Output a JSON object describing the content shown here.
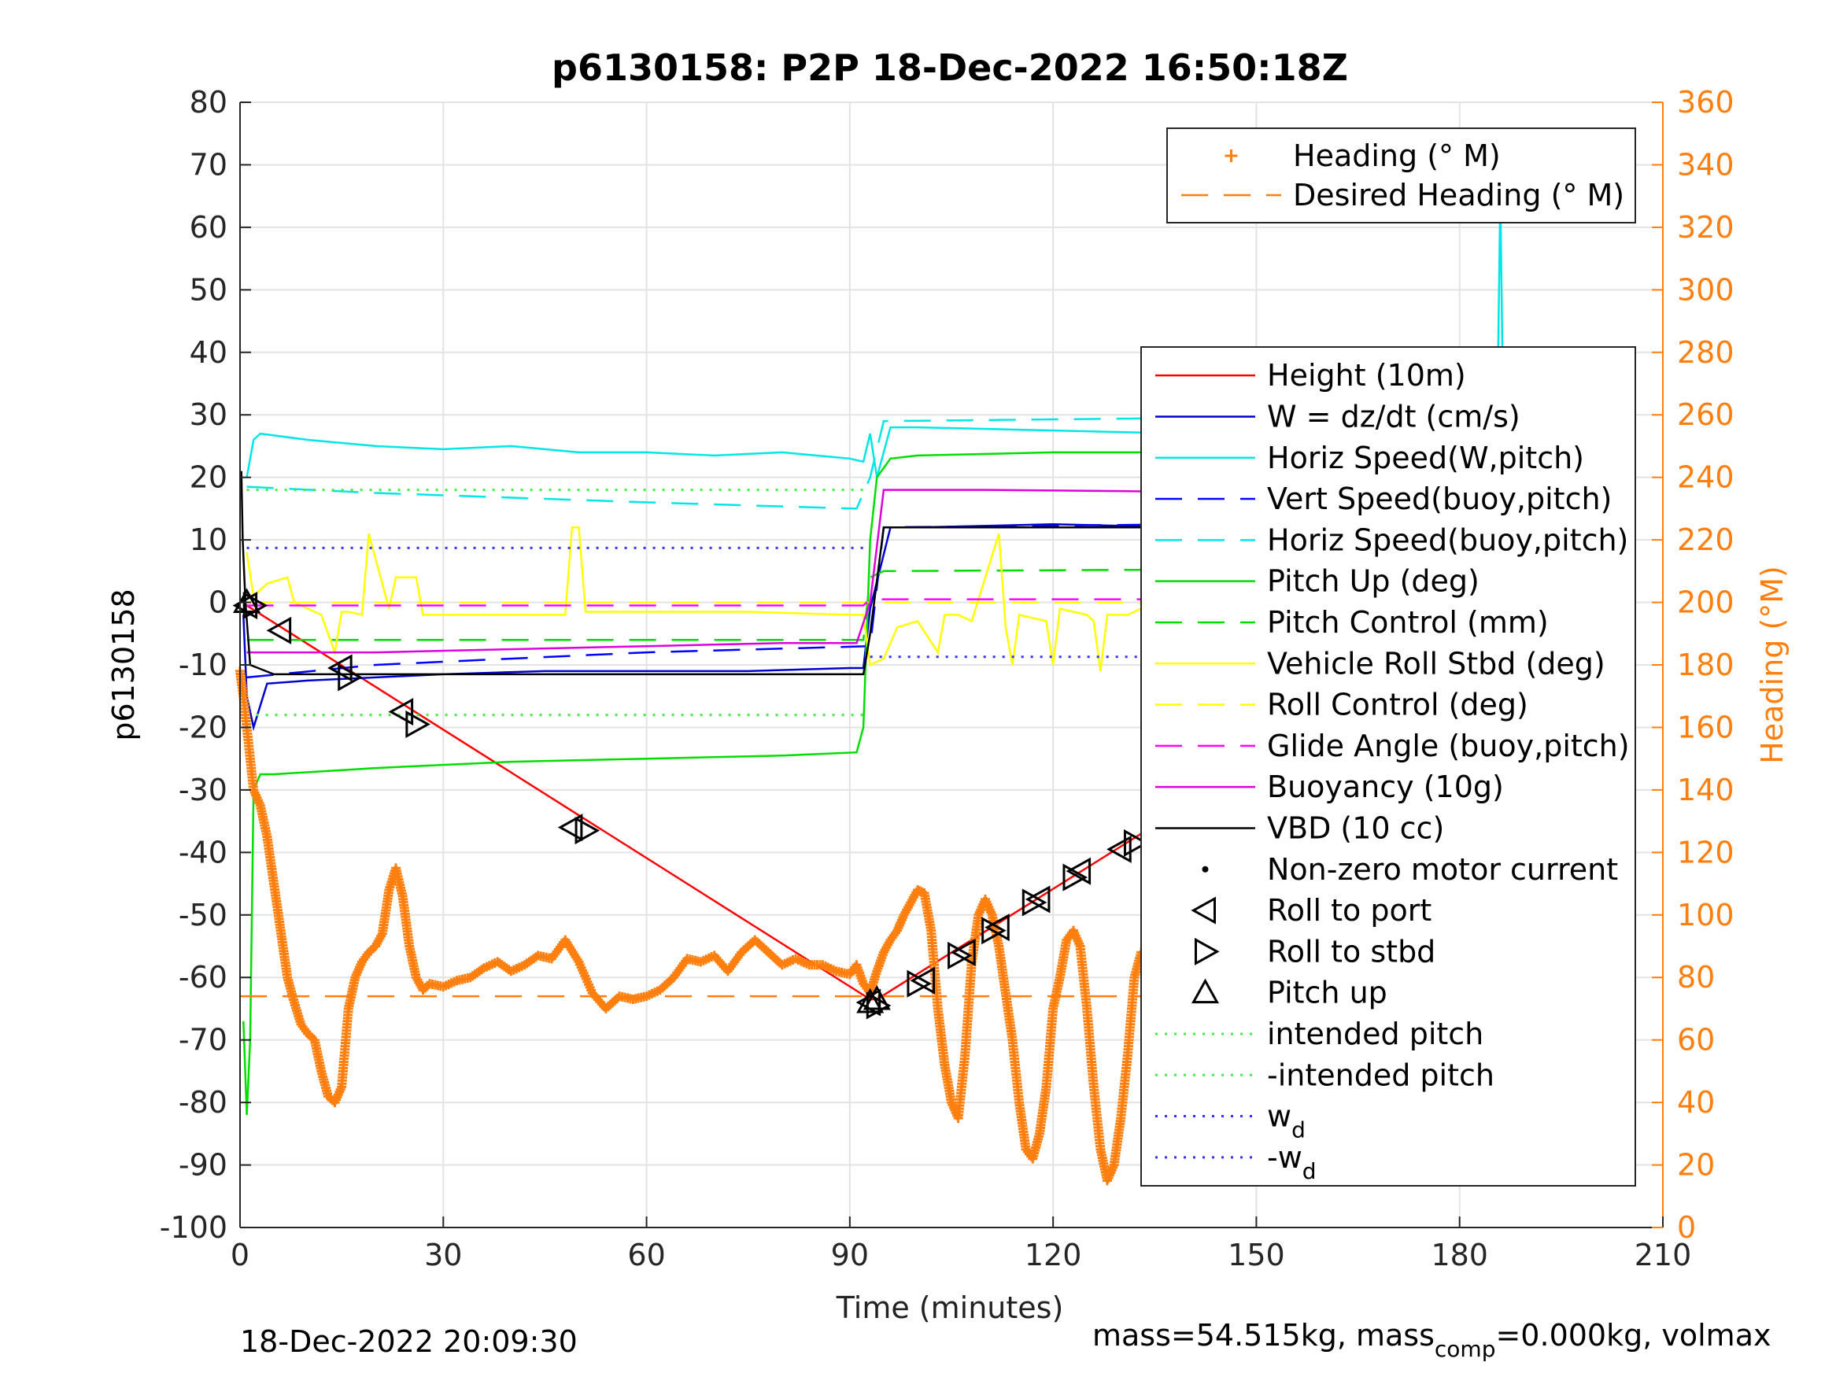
{
  "chart_data": {
    "type": "line",
    "title": "p6130158: P2P 18-Dec-2022 16:50:18Z",
    "xlabel": "Time (minutes)",
    "ylabel_left": "p6130158",
    "ylabel_right": "Heading (°M)",
    "xlim": [
      0,
      210
    ],
    "ylim_left": [
      -100,
      80
    ],
    "ylim_right": [
      0,
      360
    ],
    "xticks": [
      0,
      30,
      60,
      90,
      120,
      150,
      180,
      210
    ],
    "yticks_left": [
      -100,
      -90,
      -80,
      -70,
      -60,
      -50,
      -40,
      -30,
      -20,
      -10,
      0,
      10,
      20,
      30,
      40,
      50,
      60,
      70,
      80
    ],
    "yticks_right": [
      0,
      20,
      40,
      60,
      80,
      100,
      120,
      140,
      160,
      180,
      200,
      220,
      240,
      260,
      280,
      300,
      320,
      340,
      360
    ],
    "grid": true,
    "footer_left": "18-Dec-2022 20:09:30",
    "footer_right": {
      "prefix": "mass=54.515kg, mass",
      "sub": "comp",
      "suffix": "=0.000kg, volmax"
    },
    "colors": {
      "heading": "#ff7f0e",
      "height": "#ff0000",
      "w": "#0000cc",
      "horiz_speed": "#00e5e5",
      "vert_speed_buoy": "#0000ff",
      "pitch": "#00dd00",
      "roll": "#ffff00",
      "glide": "#ff00ff",
      "buoyancy": "#dd00dd",
      "vbd": "#000000",
      "intended_pitch": "#44ee44",
      "wd": "#3333ff"
    },
    "legend_top": {
      "placement": "top-right",
      "entries": [
        {
          "label": "Heading (° M)",
          "style": "plus",
          "color": "#ff7f0e"
        },
        {
          "label": "Desired Heading (° M)",
          "style": "dash",
          "color": "#ff7f0e"
        }
      ]
    },
    "legend_main": {
      "placement": "right",
      "entries": [
        {
          "label": "Height (10m)",
          "style": "solid",
          "color": "#ff0000"
        },
        {
          "label": "W = dz/dt (cm/s)",
          "style": "solid",
          "color": "#0000cc"
        },
        {
          "label": "Horiz Speed(W,pitch)",
          "style": "solid",
          "color": "#00e5e5"
        },
        {
          "label": "Vert Speed(buoy,pitch)",
          "style": "dash",
          "color": "#0000ff"
        },
        {
          "label": "Horiz Speed(buoy,pitch)",
          "style": "dash",
          "color": "#00e5e5"
        },
        {
          "label": "Pitch Up (deg)",
          "style": "solid",
          "color": "#00dd00"
        },
        {
          "label": "Pitch Control (mm)",
          "style": "dash",
          "color": "#00dd00"
        },
        {
          "label": "Vehicle Roll Stbd (deg)",
          "style": "solid",
          "color": "#ffff00"
        },
        {
          "label": "Roll Control (deg)",
          "style": "dash",
          "color": "#ffff00"
        },
        {
          "label": "Glide Angle (buoy,pitch)",
          "style": "dash",
          "color": "#ff00ff"
        },
        {
          "label": "Buoyancy (10g)",
          "style": "solid",
          "color": "#dd00dd"
        },
        {
          "label": "VBD (10 cc)",
          "style": "solid",
          "color": "#000000"
        },
        {
          "label": "Non-zero motor current",
          "style": "dot",
          "color": "#000000"
        },
        {
          "label": "Roll to port",
          "style": "tri-left",
          "color": "#000000"
        },
        {
          "label": "Roll to stbd",
          "style": "tri-right",
          "color": "#000000"
        },
        {
          "label": "Pitch up",
          "style": "tri-up",
          "color": "#000000"
        },
        {
          "label": "intended pitch",
          "style": "dotted",
          "color": "#44ee44"
        },
        {
          "label": "-intended pitch",
          "style": "dotted",
          "color": "#44ee44"
        },
        {
          "label": "w",
          "sub": "d",
          "style": "dotted",
          "color": "#3333ff"
        },
        {
          "label": "-w",
          "sub": "d",
          "style": "dotted",
          "color": "#3333ff"
        }
      ]
    },
    "series": [
      {
        "name": "Height (10m)",
        "axis": "left",
        "style": "solid",
        "color": "#ff0000",
        "x": [
          0.5,
          1,
          93,
          94,
          186
        ],
        "y": [
          0,
          -0.5,
          -63.5,
          -63.5,
          -1
        ]
      },
      {
        "name": "W = dz/dt (cm/s)",
        "axis": "left",
        "style": "solid",
        "color": "#0000cc",
        "x": [
          0.5,
          1,
          2,
          4,
          10,
          20,
          30,
          45,
          60,
          75,
          90,
          92,
          93,
          96,
          100,
          120,
          140,
          160,
          180,
          186
        ],
        "y": [
          -2,
          -15,
          -20,
          -13,
          -12.5,
          -12,
          -11.5,
          -11,
          -11,
          -11,
          -10.5,
          -10.5,
          -1,
          12,
          12,
          12.5,
          12,
          12.5,
          12,
          12
        ]
      },
      {
        "name": "Horiz Speed(W,pitch)",
        "axis": "left",
        "style": "solid",
        "color": "#00e5e5",
        "x": [
          1,
          2,
          3,
          10,
          20,
          30,
          40,
          50,
          60,
          70,
          80,
          90,
          92,
          93,
          94,
          96,
          100,
          120,
          140,
          160,
          170,
          180,
          185.5,
          186,
          186.5,
          187
        ],
        "y": [
          20,
          26,
          27,
          26,
          25,
          24.5,
          25,
          24,
          24,
          23.5,
          24,
          23,
          22.5,
          27,
          20,
          28,
          28,
          27.5,
          27,
          26,
          25.5,
          24,
          25,
          65,
          25,
          30
        ]
      },
      {
        "name": "Vert Speed(buoy,pitch)",
        "axis": "left",
        "style": "dash",
        "color": "#0000ff",
        "x": [
          1,
          20,
          60,
          93,
          95,
          186
        ],
        "y": [
          -12,
          -10,
          -8,
          -7,
          12,
          13
        ]
      },
      {
        "name": "Horiz Speed(buoy,pitch)",
        "axis": "left",
        "style": "dash",
        "color": "#00e5e5",
        "x": [
          1,
          20,
          60,
          91,
          93,
          95,
          140,
          186
        ],
        "y": [
          18.5,
          17.5,
          16,
          15,
          20,
          29,
          29.5,
          29
        ]
      },
      {
        "name": "Pitch Up (deg)",
        "axis": "left",
        "style": "solid",
        "color": "#00dd00",
        "x": [
          0.5,
          1,
          1.5,
          2,
          3,
          5,
          20,
          40,
          60,
          80,
          91,
          92,
          93,
          94,
          96,
          100,
          120,
          140,
          160,
          180,
          186
        ],
        "y": [
          -67,
          -82,
          -70,
          -30,
          -27.5,
          -27.5,
          -26.5,
          -25.5,
          -25,
          -24.5,
          -24,
          -20,
          10,
          20,
          23,
          23.5,
          24,
          24,
          23.5,
          23.5,
          23.5
        ]
      },
      {
        "name": "Pitch Control (mm)",
        "axis": "left",
        "style": "dash",
        "color": "#00dd00",
        "x": [
          1,
          92,
          93,
          95,
          186
        ],
        "y": [
          -6,
          -6,
          4,
          5,
          5.5
        ]
      },
      {
        "name": "Vehicle Roll Stbd (deg)",
        "axis": "left",
        "style": "solid",
        "color": "#ffff00",
        "x": [
          1,
          2,
          4,
          7,
          8,
          12,
          14,
          15,
          16,
          18,
          19,
          22,
          23,
          24,
          26,
          27,
          30,
          45,
          48,
          49,
          50,
          51,
          52,
          60,
          75,
          90,
          92,
          93,
          95,
          97,
          100,
          103,
          104,
          106,
          108,
          112,
          113,
          114,
          115,
          119,
          120,
          121,
          125,
          126,
          127,
          128,
          131,
          133,
          134,
          140,
          148,
          149,
          150,
          152,
          158,
          160,
          165,
          172,
          175,
          179,
          180,
          181,
          185,
          186
        ],
        "y": [
          8,
          1,
          3,
          4,
          0,
          -2,
          -8,
          -1.5,
          -1.5,
          -2,
          11,
          -1,
          4,
          4,
          4,
          -2,
          -2,
          -2,
          -2,
          12,
          12,
          -1.5,
          -1.5,
          -1.5,
          -1.5,
          -2,
          -2,
          -10,
          -9,
          -4,
          -3,
          -8,
          -2,
          -2,
          -3,
          11,
          -4,
          -10,
          -2,
          -3,
          -10,
          -1,
          -2,
          -3,
          -11,
          -2,
          -2,
          -1,
          -1,
          -1,
          -1,
          -7,
          -1,
          -1,
          -1.5,
          -1.5,
          -2,
          -2,
          -1,
          -1,
          -6,
          -1,
          -1.5,
          -1.5
        ]
      },
      {
        "name": "Roll Control (deg)",
        "axis": "left",
        "style": "dash",
        "color": "#ffff00",
        "x": [
          1,
          186
        ],
        "y": [
          0,
          0
        ]
      },
      {
        "name": "Glide Angle (buoy,pitch)",
        "axis": "left",
        "style": "dash",
        "color": "#ff00ff",
        "x": [
          1,
          92,
          93,
          95,
          186
        ],
        "y": [
          -0.5,
          -0.5,
          0.5,
          0.5,
          0.5
        ]
      },
      {
        "name": "Buoyancy (10g)",
        "axis": "left",
        "style": "solid",
        "color": "#dd00dd",
        "x": [
          1,
          20,
          40,
          60,
          80,
          91,
          93,
          95,
          110,
          130,
          150,
          170,
          186
        ],
        "y": [
          -8,
          -8,
          -7.5,
          -7,
          -6.5,
          -6.5,
          0,
          18,
          18,
          17.8,
          17.5,
          17.2,
          17
        ]
      },
      {
        "name": "VBD (10 cc)",
        "axis": "left",
        "style": "solid",
        "color": "#000000",
        "x": [
          0.2,
          0.4,
          0.8,
          1.5,
          5,
          91,
          92,
          93,
          95,
          186
        ],
        "y": [
          21,
          10,
          0,
          -10,
          -11.5,
          -11.5,
          -11.5,
          -5,
          12,
          12
        ]
      },
      {
        "name": "intended pitch",
        "axis": "left",
        "style": "dotted",
        "color": "#44ee44",
        "x": [
          1,
          92
        ],
        "y": [
          18,
          18
        ]
      },
      {
        "name": "-intended pitch",
        "axis": "left",
        "style": "dotted",
        "color": "#44ee44",
        "x": [
          1,
          92
        ],
        "y": [
          -18,
          -18
        ]
      },
      {
        "name": "w_d",
        "axis": "left",
        "style": "dotted",
        "color": "#3333ff",
        "x": [
          1,
          92
        ],
        "y": [
          8.7,
          8.7
        ]
      },
      {
        "name": "-w_d",
        "axis": "left",
        "style": "dotted",
        "color": "#3333ff",
        "x": [
          93,
          186
        ],
        "y": [
          -8.7,
          -8.7
        ]
      },
      {
        "name": "Desired Heading (° M)",
        "axis": "right",
        "style": "dash",
        "color": "#ff7f0e",
        "x": [
          0,
          187
        ],
        "y": [
          74,
          74
        ]
      },
      {
        "name": "Heading (° M)",
        "axis": "right",
        "style": "plus",
        "color": "#ff7f0e",
        "x": [
          0,
          0.5,
          1,
          1.5,
          2,
          3,
          4,
          5,
          6,
          7,
          8,
          9,
          10,
          11,
          12,
          13,
          14,
          15,
          16,
          17,
          18,
          19,
          20,
          21,
          22,
          23,
          24,
          25,
          26,
          27,
          28,
          30,
          32,
          34,
          36,
          38,
          40,
          42,
          44,
          46,
          48,
          50,
          52,
          54,
          56,
          58,
          60,
          62,
          64,
          66,
          68,
          70,
          72,
          74,
          76,
          78,
          80,
          82,
          84,
          86,
          88,
          90,
          91,
          92,
          93,
          94,
          95,
          96,
          97,
          98,
          99,
          100,
          101,
          102,
          103,
          104,
          105,
          106,
          107,
          108,
          109,
          110,
          111,
          112,
          113,
          114,
          115,
          116,
          117,
          118,
          119,
          120,
          121,
          122,
          123,
          124,
          125,
          126,
          127,
          128,
          129,
          130,
          131,
          132,
          133,
          134,
          135,
          136,
          137,
          138,
          139,
          140,
          141,
          142,
          143,
          144,
          145,
          146,
          147,
          148,
          149,
          150,
          151,
          152,
          153,
          154,
          155,
          156,
          157,
          158,
          159,
          160,
          161,
          162,
          163,
          164,
          165,
          166,
          167,
          168,
          169,
          170,
          171,
          172,
          173,
          174,
          175,
          176,
          177,
          178,
          179,
          180,
          181,
          182,
          183,
          184,
          185,
          186,
          187
        ],
        "y": [
          178,
          170,
          160,
          150,
          140,
          135,
          125,
          110,
          95,
          80,
          72,
          65,
          62,
          60,
          50,
          42,
          40,
          45,
          70,
          80,
          85,
          88,
          90,
          94,
          108,
          115,
          106,
          90,
          80,
          76,
          78,
          77,
          79,
          80,
          83,
          85,
          82,
          84,
          87,
          86,
          92,
          85,
          75,
          70,
          74,
          73,
          74,
          76,
          80,
          86,
          85,
          87,
          82,
          88,
          92,
          88,
          84,
          86,
          84,
          84,
          82,
          81,
          84,
          78,
          75,
          82,
          88,
          92,
          95,
          100,
          104,
          108,
          107,
          95,
          70,
          52,
          40,
          35,
          55,
          85,
          100,
          105,
          100,
          90,
          75,
          60,
          40,
          25,
          22,
          30,
          45,
          70,
          80,
          92,
          95,
          90,
          70,
          45,
          25,
          15,
          20,
          35,
          55,
          80,
          88,
          86,
          82,
          86,
          90,
          94,
          102,
          100,
          90,
          70,
          48,
          40,
          50,
          65,
          80,
          90,
          88,
          80,
          70,
          65,
          62,
          58,
          55,
          60,
          70,
          86,
          96,
          92,
          82,
          60,
          40,
          38,
          50,
          65,
          80,
          85,
          88,
          78,
          65,
          50,
          40,
          42,
          60,
          90,
          130,
          110,
          80,
          55,
          38,
          35,
          50,
          75,
          90,
          88,
          82
        ]
      },
      {
        "name": "Roll to port",
        "axis": "left",
        "style": "tri-left",
        "color": "#000000",
        "x": [
          1,
          6,
          15,
          24,
          49,
          93,
          101,
          107,
          112,
          118,
          124,
          130,
          148,
          154,
          159,
          167,
          177,
          184
        ],
        "y": [
          -0.5,
          -4.5,
          -10.5,
          -17.5,
          -36,
          -64,
          -60.5,
          -56,
          -52,
          -47.5,
          -43,
          -39.5,
          -26,
          -22.5,
          -18.5,
          -13,
          -6.5,
          -2.5
        ]
      },
      {
        "name": "Roll to stbd",
        "axis": "left",
        "style": "tri-right",
        "color": "#000000",
        "x": [
          2,
          16,
          26,
          51,
          94,
          100,
          106,
          111,
          117,
          123,
          132,
          149,
          153,
          158,
          166,
          178,
          182
        ],
        "y": [
          -0.5,
          -12,
          -19.5,
          -36.5,
          -64.5,
          -61,
          -56.5,
          -52.5,
          -48,
          -44,
          -38.5,
          -25.5,
          -23,
          -19,
          -13.5,
          -6,
          -3
        ]
      },
      {
        "name": "Pitch up",
        "axis": "left",
        "style": "tri-up",
        "color": "#000000",
        "x": [
          1,
          93,
          94
        ],
        "y": [
          0,
          -64,
          -63.5
        ]
      }
    ]
  }
}
